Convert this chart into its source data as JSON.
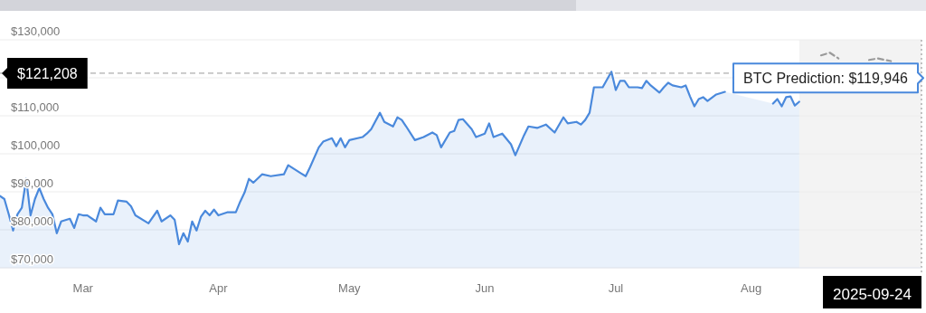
{
  "chart_data": {
    "type": "area",
    "xlim": [
      "2025-02-10",
      "2025-09-09"
    ],
    "xticks": [
      {
        "value": "2025-03-01",
        "label": "Mar"
      },
      {
        "value": "2025-04-01",
        "label": "Apr"
      },
      {
        "value": "2025-05-01",
        "label": "May"
      },
      {
        "value": "2025-06-01",
        "label": "Jun"
      },
      {
        "value": "2025-07-01",
        "label": "Jul"
      },
      {
        "value": "2025-08-01",
        "label": "Aug"
      }
    ],
    "ylim": [
      70000,
      130000
    ],
    "yticks": [
      {
        "value": 70000,
        "label": "$70,000"
      },
      {
        "value": 80000,
        "label": "$80,000"
      },
      {
        "value": 90000,
        "label": "$90,000"
      },
      {
        "value": 100000,
        "label": "$100,000"
      },
      {
        "value": 110000,
        "label": "$110,000"
      },
      {
        "value": 120000,
        "label": null
      },
      {
        "value": 130000,
        "label": "$130,000"
      }
    ],
    "grid": "y",
    "series": [
      {
        "color": "#4a89dc",
        "x": [
          "2025-02-10",
          "2025-02-11",
          "2025-02-12",
          "2025-02-13",
          "2025-02-14",
          "2025-02-15",
          "2025-02-16",
          "2025-02-17",
          "2025-02-18",
          "2025-02-19",
          "2025-02-20",
          "2025-02-21",
          "2025-02-22",
          "2025-02-23",
          "2025-02-24",
          "2025-02-26",
          "2025-02-27",
          "2025-02-28",
          "2025-03-01",
          "2025-03-02",
          "2025-03-04",
          "2025-03-05",
          "2025-03-06",
          "2025-03-08",
          "2025-03-09",
          "2025-03-11",
          "2025-03-12",
          "2025-03-13",
          "2025-03-16",
          "2025-03-18",
          "2025-03-19",
          "2025-03-21",
          "2025-03-22",
          "2025-03-23",
          "2025-03-24",
          "2025-03-25",
          "2025-03-26",
          "2025-03-27",
          "2025-03-28",
          "2025-03-29",
          "2025-03-30",
          "2025-03-31",
          "2025-04-01",
          "2025-04-03",
          "2025-04-05",
          "2025-04-06",
          "2025-04-07",
          "2025-04-08",
          "2025-04-09",
          "2025-04-11",
          "2025-04-13",
          "2025-04-16",
          "2025-04-17",
          "2025-04-20",
          "2025-04-21",
          "2025-04-22",
          "2025-04-24",
          "2025-04-25",
          "2025-04-27",
          "2025-04-28",
          "2025-04-29",
          "2025-04-30",
          "2025-05-01",
          "2025-05-04",
          "2025-05-05",
          "2025-05-06",
          "2025-05-08",
          "2025-05-09",
          "2025-05-11",
          "2025-05-12",
          "2025-05-13",
          "2025-05-14",
          "2025-05-16",
          "2025-05-18",
          "2025-05-20",
          "2025-05-21",
          "2025-05-22",
          "2025-05-24",
          "2025-05-25",
          "2025-05-26",
          "2025-05-27",
          "2025-05-29",
          "2025-05-30",
          "2025-06-01",
          "2025-06-02",
          "2025-06-03",
          "2025-06-05",
          "2025-06-07",
          "2025-06-08",
          "2025-06-10",
          "2025-06-11",
          "2025-06-13",
          "2025-06-15",
          "2025-06-17",
          "2025-06-19",
          "2025-06-20",
          "2025-06-22",
          "2025-06-23",
          "2025-06-24",
          "2025-06-25",
          "2025-06-26",
          "2025-06-28",
          "2025-06-30",
          "2025-07-01",
          "2025-07-02",
          "2025-07-03",
          "2025-07-04",
          "2025-07-06",
          "2025-07-07",
          "2025-07-08",
          "2025-07-09",
          "2025-07-11",
          "2025-07-12",
          "2025-07-13",
          "2025-07-14",
          "2025-07-16",
          "2025-07-17",
          "2025-07-18",
          "2025-07-19",
          "2025-07-20",
          "2025-07-21",
          "2025-07-22",
          "2025-07-24",
          "2025-07-26",
          "2025-07-29",
          "2025-08-01",
          "2025-08-05",
          "2025-08-06",
          "2025-08-07",
          "2025-08-08",
          "2025-08-09",
          "2025-08-10",
          "2025-08-11",
          "2025-08-12"
        ],
        "values": [
          88900,
          88100,
          84100,
          79800,
          84100,
          85800,
          93400,
          83800,
          88100,
          91000,
          88100,
          85800,
          84100,
          79100,
          82200,
          82900,
          80500,
          84100,
          83800,
          83800,
          82200,
          85800,
          84100,
          84100,
          87700,
          87400,
          86200,
          83800,
          81700,
          85000,
          82200,
          83800,
          82600,
          76200,
          79100,
          76900,
          82200,
          79800,
          83400,
          85000,
          83800,
          85300,
          83800,
          84600,
          84600,
          87400,
          89800,
          93400,
          92400,
          94600,
          94100,
          94600,
          97000,
          94800,
          94100,
          96500,
          101700,
          103200,
          104100,
          102000,
          104100,
          101700,
          103600,
          104400,
          105300,
          106500,
          110800,
          108400,
          107200,
          109600,
          108900,
          107200,
          103600,
          104400,
          105600,
          104900,
          101700,
          105600,
          106000,
          108900,
          109100,
          106500,
          104400,
          105300,
          108000,
          104400,
          105300,
          102500,
          99600,
          104900,
          107200,
          106800,
          107700,
          105600,
          109600,
          108000,
          108400,
          107700,
          108900,
          110800,
          117500,
          117500,
          121600,
          116800,
          119200,
          119200,
          117500,
          117500,
          117300,
          119200,
          118000,
          116100,
          117500,
          118700,
          118000,
          117500,
          118000,
          115100,
          112500,
          114400,
          114900,
          113900,
          115600,
          116300,
          null,
          null,
          null,
          113200,
          114400,
          112500,
          114900,
          115100,
          112700,
          113700
        ]
      },
      {
        "type": "line",
        "color": "#9a9a9a",
        "line_style": "dashed",
        "x": [
          "2025-08-17",
          "2025-08-19",
          "2025-08-21",
          "2025-08-23",
          "2025-08-25",
          "2025-08-28",
          "2025-08-30",
          "2025-09-02"
        ],
        "values": [
          125900,
          126600,
          125100,
          null,
          null,
          124700,
          125100,
          124400
        ]
      }
    ],
    "ref_lines": [
      {
        "axis": "y",
        "value": 121208,
        "label": "$121,208",
        "color": "#999999",
        "line_style": "dashed"
      },
      {
        "axis": "x",
        "value": "2025-09-09",
        "color": "#888888",
        "line_style": "dotted"
      }
    ],
    "bands": [
      {
        "axis": "x",
        "from": "2025-08-12",
        "to": "2025-09-09",
        "color": "#f3f3f3"
      }
    ],
    "annotations": [
      {
        "text": "BTC Prediction: $119,946",
        "x": "2025-09-09",
        "y": 119946
      },
      "2025-09-24"
    ]
  }
}
